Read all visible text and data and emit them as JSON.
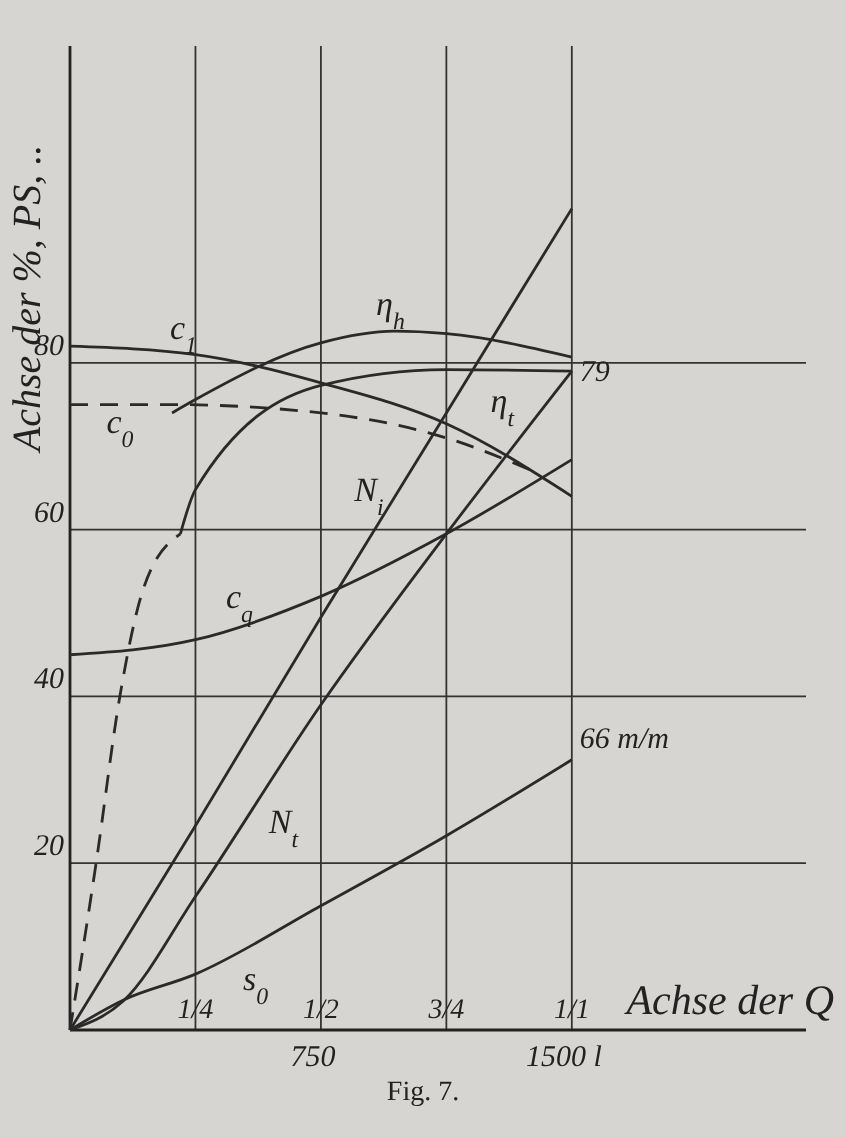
{
  "chart_data": {
    "type": "line",
    "xlabel": "Achse der Q",
    "ylabel": "Achse der %, PS, ..",
    "xlim": [
      0,
      2200
    ],
    "ylim": [
      0,
      118
    ],
    "xticks": [
      750,
      {
        "value": 1500,
        "label": "1500 l"
      }
    ],
    "x2lim": [
      0,
      1.4666667
    ],
    "x2ticks": [
      {
        "value": 0.25,
        "label": "1/4"
      },
      {
        "value": 0.5,
        "label": "1/2"
      },
      {
        "value": 0.75,
        "label": "3/4"
      },
      {
        "value": 1,
        "label": "1/1"
      }
    ],
    "yticks": [
      20,
      40,
      60,
      80
    ],
    "grid": true,
    "series": [
      {
        "name": "c$_{1}$",
        "color": "#2a2a2a",
        "x": [
          0,
          375,
          750,
          1125,
          1500
        ],
        "values": [
          82,
          81,
          77.6,
          72.7,
          64
        ]
      },
      {
        "name": "c$_{0}$",
        "color": "#2a2a2a",
        "line_style": "dashed",
        "x": [
          0,
          300,
          750,
          1125,
          1386
        ],
        "values": [
          75,
          75,
          74,
          71,
          67
        ]
      },
      {
        "name": "η$_{h}$",
        "color": "#2a2a2a",
        "x": [
          305,
          375,
          750,
          970,
          1125,
          1500
        ],
        "values": [
          74,
          75.6,
          82.4,
          83.8,
          83.5,
          80.7
        ]
      },
      {
        "name": "η$_{t}$",
        "color": "#2a2a2a",
        "x": [
          330,
          375,
          750,
          1125,
          1500
        ],
        "values": [
          59.5,
          64.8,
          77.3,
          79.2,
          79
        ]
      },
      {
        "color": "#2a2a2a",
        "line_style": "dashed",
        "x": [
          0,
          78,
          149,
          220,
          330
        ],
        "values": [
          0,
          20,
          40,
          53,
          59.5
        ]
      },
      {
        "name": "N$_{i}$",
        "color": "#2a2a2a",
        "x": [
          0,
          375,
          750,
          1125,
          1500
        ],
        "values": [
          0,
          24.5,
          49.5,
          74,
          98.5
        ]
      },
      {
        "name": "N$_{t}$",
        "color": "#2a2a2a",
        "x": [
          0,
          160,
          375,
          750,
          1125,
          1500
        ],
        "values": [
          0,
          3.5,
          16,
          39,
          59.5,
          79
        ],
        "value_labels": [
          null,
          null,
          null,
          null,
          null,
          "79"
        ]
      },
      {
        "name": "c$_{q}$",
        "color": "#2a2a2a",
        "x": [
          0,
          375,
          750,
          1125,
          1500
        ],
        "values": [
          45,
          46.8,
          52,
          59.5,
          68.4
        ]
      },
      {
        "name": "s$_{0}$",
        "color": "#2a2a2a",
        "x": [
          0,
          160,
          375,
          750,
          1125,
          1500
        ],
        "values": [
          0,
          3.6,
          6.7,
          14.9,
          23.3,
          32.4
        ]
      }
    ],
    "annotations": [
      {
        "text": "66 m/m",
        "x": 1500,
        "y": 32.4
      },
      "Fig. 7."
    ]
  }
}
